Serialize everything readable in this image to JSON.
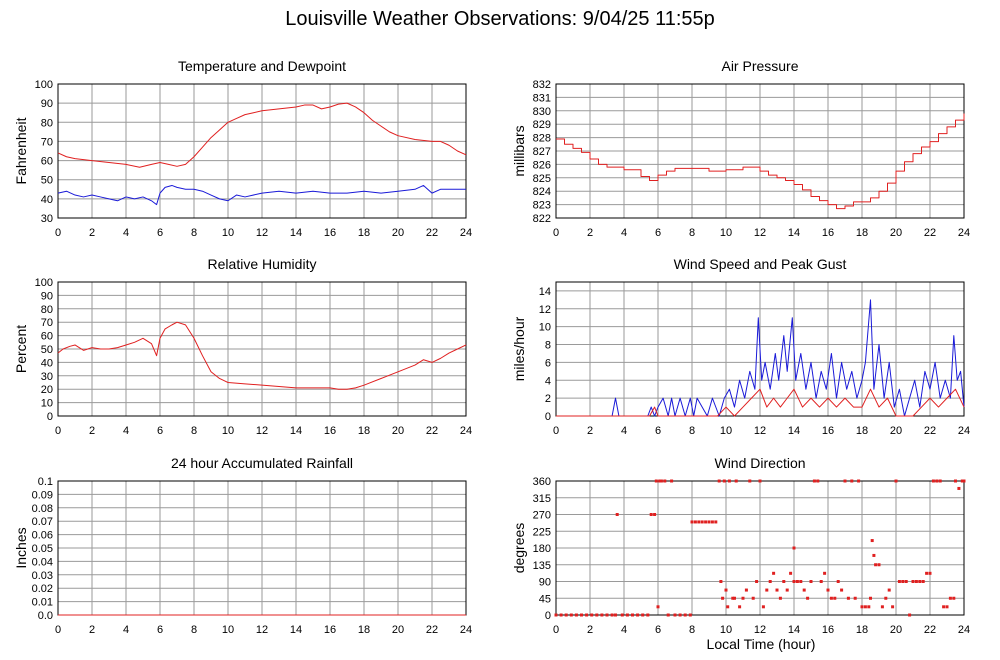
{
  "page": {
    "title": "Louisville Weather Observations: 9/04/25 11:55p"
  },
  "xlabel": "Local Time (hour)",
  "colors": {
    "red": "#e02020",
    "blue": "#1a1ad8",
    "grid": "#9a9a9a",
    "axis": "#000000"
  },
  "chart_data": [
    {
      "id": "temp",
      "type": "line",
      "title": "Temperature and Dewpoint",
      "ylabel": "Fahrenheit",
      "xlim": [
        0,
        24
      ],
      "ylim": [
        30,
        100
      ],
      "xticks": [
        0,
        2,
        4,
        6,
        8,
        10,
        12,
        14,
        16,
        18,
        20,
        22,
        24
      ],
      "yticks": [
        30,
        40,
        50,
        60,
        70,
        80,
        90,
        100
      ],
      "series": [
        {
          "color": "red",
          "x": [
            0,
            0.5,
            1,
            2,
            3,
            4,
            4.8,
            5.5,
            6,
            6.5,
            7,
            7.5,
            8,
            8.5,
            9,
            9.5,
            10,
            10.5,
            11,
            11.5,
            12,
            13,
            14,
            14.5,
            15,
            15.5,
            16,
            16.5,
            17,
            17.5,
            18,
            18.5,
            19,
            19.5,
            20,
            21,
            22,
            22.5,
            23,
            23.5,
            24
          ],
          "y": [
            64,
            62,
            61,
            60,
            59,
            58,
            56.5,
            58,
            59,
            58,
            57,
            58,
            62,
            67,
            72,
            76,
            80,
            82,
            84,
            85,
            86,
            87,
            88,
            89,
            89,
            87,
            88,
            89.5,
            90,
            88,
            85,
            81,
            78,
            75,
            73,
            71,
            70,
            70,
            68,
            65,
            63
          ]
        },
        {
          "color": "blue",
          "x": [
            0,
            0.5,
            1,
            1.5,
            2,
            2.5,
            3,
            3.5,
            4,
            4.5,
            5,
            5.5,
            5.8,
            6,
            6.3,
            6.7,
            7,
            7.5,
            8,
            8.5,
            9,
            9.5,
            10,
            10.5,
            11,
            12,
            13,
            14,
            15,
            16,
            17,
            18,
            19,
            20,
            21,
            21.5,
            22,
            22.5,
            23,
            24
          ],
          "y": [
            43,
            44,
            42,
            41,
            42,
            41,
            40,
            39,
            41,
            40,
            41,
            39,
            37,
            43,
            46,
            47,
            46,
            45,
            45,
            44,
            42,
            40,
            39,
            42,
            41,
            43,
            44,
            43,
            44,
            43,
            43,
            44,
            43,
            44,
            45,
            47,
            43,
            45,
            45,
            45
          ]
        }
      ]
    },
    {
      "id": "pres",
      "type": "line",
      "title": "Air Pressure",
      "ylabel": "millibars",
      "xlim": [
        0,
        24
      ],
      "ylim": [
        822,
        832
      ],
      "xticks": [
        0,
        2,
        4,
        6,
        8,
        10,
        12,
        14,
        16,
        18,
        20,
        22,
        24
      ],
      "yticks": [
        822,
        823,
        824,
        825,
        826,
        827,
        828,
        829,
        830,
        831,
        832
      ],
      "series": [
        {
          "color": "red",
          "step": true,
          "x": [
            0,
            0.5,
            1,
            1.5,
            2,
            2.5,
            3,
            4,
            5,
            5.5,
            6,
            6.5,
            7,
            8,
            9,
            10,
            11,
            11.5,
            12,
            12.5,
            13,
            13.5,
            14,
            14.5,
            15,
            15.5,
            16,
            16.5,
            17,
            17.5,
            18,
            18.5,
            19,
            19.5,
            20,
            20.5,
            21,
            21.5,
            22,
            22.5,
            23,
            23.5,
            24
          ],
          "y": [
            827.9,
            827.5,
            827.2,
            826.9,
            826.4,
            826.0,
            825.8,
            825.6,
            825.1,
            824.8,
            825.2,
            825.5,
            825.7,
            825.7,
            825.5,
            825.6,
            825.8,
            825.8,
            825.5,
            825.2,
            825.0,
            824.8,
            824.5,
            824.1,
            823.6,
            823.3,
            823.0,
            822.7,
            822.9,
            823.2,
            823.2,
            823.5,
            824.0,
            824.6,
            825.5,
            826.2,
            826.8,
            827.3,
            827.7,
            828.3,
            828.8,
            829.3,
            829.8
          ]
        }
      ]
    },
    {
      "id": "rh",
      "type": "line",
      "title": "Relative Humidity",
      "ylabel": "Percent",
      "xlim": [
        0,
        24
      ],
      "ylim": [
        0,
        100
      ],
      "xticks": [
        0,
        2,
        4,
        6,
        8,
        10,
        12,
        14,
        16,
        18,
        20,
        22,
        24
      ],
      "yticks": [
        0,
        10,
        20,
        30,
        40,
        50,
        60,
        70,
        80,
        90,
        100
      ],
      "series": [
        {
          "color": "red",
          "x": [
            0,
            0.3,
            0.7,
            1,
            1.5,
            2,
            2.5,
            3,
            3.5,
            4,
            4.5,
            5,
            5.5,
            5.8,
            6,
            6.3,
            6.7,
            7,
            7.5,
            8,
            8.5,
            9,
            9.5,
            10,
            11,
            12,
            13,
            14,
            15,
            16,
            16.5,
            17,
            17.5,
            18,
            19,
            20,
            21,
            21.5,
            22,
            22.5,
            23,
            23.5,
            24
          ],
          "y": [
            47,
            50,
            52,
            53,
            49,
            51,
            50,
            50,
            51,
            53,
            55,
            58,
            54,
            45,
            58,
            65,
            68,
            70,
            68,
            58,
            45,
            33,
            28,
            25,
            24,
            23,
            22,
            21,
            21,
            21,
            20,
            20,
            21,
            23,
            28,
            33,
            38,
            42,
            40,
            43,
            47,
            50,
            53
          ]
        }
      ]
    },
    {
      "id": "wind",
      "type": "line",
      "title": "Wind Speed and Peak Gust",
      "ylabel": "miles/hour",
      "xlim": [
        0,
        24
      ],
      "ylim": [
        0,
        15
      ],
      "xticks": [
        0,
        2,
        4,
        6,
        8,
        10,
        12,
        14,
        16,
        18,
        20,
        22,
        24
      ],
      "yticks": [
        0,
        2,
        4,
        6,
        8,
        10,
        12,
        14
      ],
      "series": [
        {
          "color": "blue",
          "x": [
            0,
            3.3,
            3.5,
            3.7,
            5.4,
            5.6,
            5.8,
            6.0,
            6.3,
            6.6,
            6.8,
            7.0,
            7.3,
            7.6,
            7.9,
            8.1,
            8.3,
            8.6,
            8.9,
            9.2,
            9.6,
            9.9,
            10.2,
            10.5,
            10.8,
            11.1,
            11.4,
            11.7,
            11.9,
            12.1,
            12.3,
            12.6,
            12.9,
            13.1,
            13.4,
            13.6,
            13.9,
            14.1,
            14.4,
            14.7,
            15.0,
            15.3,
            15.6,
            15.9,
            16.2,
            16.5,
            16.8,
            17.1,
            17.4,
            17.7,
            18.0,
            18.2,
            18.5,
            18.7,
            19.0,
            19.3,
            19.6,
            19.9,
            20.2,
            20.5,
            20.8,
            21.1,
            21.4,
            21.7,
            22.0,
            22.3,
            22.6,
            22.9,
            23.2,
            23.4,
            23.6,
            23.8,
            24
          ],
          "y": [
            0,
            0,
            2,
            0,
            0,
            1,
            0,
            1,
            2,
            0,
            2,
            0,
            2,
            0,
            2,
            0,
            2,
            1,
            0,
            2,
            0,
            2,
            3,
            1,
            4,
            2,
            5,
            3,
            11,
            4,
            6,
            3,
            7,
            4,
            9,
            5,
            11,
            4,
            7,
            3,
            6,
            2,
            5,
            3,
            7,
            2,
            6,
            3,
            5,
            2,
            4,
            6,
            13,
            3,
            8,
            2,
            6,
            1,
            3,
            0,
            2,
            4,
            1,
            5,
            3,
            6,
            2,
            4,
            2,
            9,
            4,
            5,
            1
          ]
        },
        {
          "color": "red",
          "x": [
            0,
            5.5,
            5.8,
            6.0,
            6.5,
            9.5,
            10.0,
            10.5,
            11.0,
            11.5,
            12.0,
            12.4,
            12.8,
            13.2,
            13.6,
            14.0,
            14.5,
            15.0,
            15.5,
            16.0,
            16.5,
            17.0,
            17.5,
            18.0,
            18.5,
            19.0,
            19.5,
            20.0,
            21.0,
            21.5,
            22.0,
            22.5,
            23.0,
            23.5,
            24
          ],
          "y": [
            0,
            0,
            1,
            0,
            0,
            0,
            1,
            0,
            1,
            2,
            3,
            1,
            2,
            1,
            2,
            3,
            1,
            2,
            1,
            2,
            1,
            2,
            1,
            1,
            3,
            1,
            2,
            0,
            0,
            1,
            2,
            1,
            2,
            3,
            1
          ]
        }
      ]
    },
    {
      "id": "rain",
      "type": "line",
      "title": "24 hour Accumulated Rainfall",
      "ylabel": "Inches",
      "xlim": [
        0,
        24
      ],
      "ylim": [
        0,
        0.1
      ],
      "xticks": [
        0,
        2,
        4,
        6,
        8,
        10,
        12,
        14,
        16,
        18,
        20,
        22,
        24
      ],
      "yticks": [
        0.0,
        0.01,
        0.02,
        0.03,
        0.04,
        0.05,
        0.06,
        0.07,
        0.08,
        0.09,
        0.1
      ],
      "ytick_labels": [
        "0.0",
        "0.01",
        "0.02",
        "0.03",
        "0.04",
        "0.05",
        "0.06",
        "0.07",
        "0.08",
        "0.09",
        "0.1"
      ],
      "series": [
        {
          "color": "red",
          "x": [
            0,
            24
          ],
          "y": [
            0,
            0
          ]
        }
      ]
    },
    {
      "id": "dir",
      "type": "scatter",
      "title": "Wind Direction",
      "ylabel": "degrees",
      "xlim": [
        0,
        24
      ],
      "ylim": [
        0,
        360
      ],
      "xticks": [
        0,
        2,
        4,
        6,
        8,
        10,
        12,
        14,
        16,
        18,
        20,
        22,
        24
      ],
      "yticks": [
        0,
        45,
        90,
        135,
        180,
        225,
        270,
        315,
        360
      ],
      "series": [
        {
          "color": "red",
          "x": [
            0,
            0.3,
            0.6,
            0.9,
            1.2,
            1.5,
            1.8,
            2.1,
            2.4,
            2.7,
            3.0,
            3.3,
            3.5,
            3.6,
            3.9,
            4.2,
            4.5,
            4.8,
            5.1,
            5.4,
            5.6,
            5.8,
            5.9,
            6.0,
            6.1,
            6.2,
            6.4,
            6.6,
            6.8,
            7.0,
            7.3,
            7.6,
            7.9,
            8.0,
            8.2,
            8.4,
            8.6,
            8.8,
            9.0,
            9.2,
            9.4,
            9.6,
            9.7,
            9.8,
            9.9,
            10.0,
            10.1,
            10.2,
            10.4,
            10.5,
            10.6,
            10.8,
            11.0,
            11.2,
            11.4,
            11.6,
            11.8,
            12.0,
            12.2,
            12.4,
            12.6,
            12.8,
            13.0,
            13.2,
            13.4,
            13.6,
            13.8,
            14.0,
            14.0,
            14.2,
            14.4,
            14.6,
            14.8,
            15.0,
            15.2,
            15.4,
            15.6,
            15.8,
            16.0,
            16.2,
            16.4,
            16.6,
            16.8,
            17.0,
            17.2,
            17.4,
            17.6,
            17.8,
            18.0,
            18.2,
            18.4,
            18.5,
            18.6,
            18.7,
            18.8,
            19.0,
            19.2,
            19.4,
            19.6,
            19.8,
            20.0,
            20.2,
            20.4,
            20.6,
            20.8,
            21.0,
            21.2,
            21.4,
            21.6,
            21.8,
            22.0,
            22.2,
            22.4,
            22.6,
            22.8,
            23.0,
            23.2,
            23.4,
            23.5,
            23.7,
            23.9,
            24.0
          ],
          "y": [
            0,
            0,
            0,
            0,
            0,
            0,
            0,
            0,
            0,
            0,
            0,
            0,
            0,
            270,
            0,
            0,
            0,
            0,
            0,
            0,
            270,
            270,
            360,
            22,
            360,
            360,
            360,
            0,
            360,
            0,
            0,
            0,
            0,
            250,
            250,
            250,
            250,
            250,
            250,
            250,
            250,
            360,
            90,
            45,
            360,
            67,
            22,
            360,
            45,
            45,
            360,
            22,
            45,
            67,
            360,
            45,
            90,
            360,
            22,
            67,
            90,
            112,
            67,
            45,
            90,
            67,
            112,
            90,
            180,
            90,
            90,
            67,
            45,
            90,
            360,
            360,
            90,
            112,
            67,
            45,
            45,
            90,
            67,
            360,
            45,
            360,
            45,
            360,
            22,
            22,
            22,
            45,
            200,
            160,
            135,
            135,
            22,
            45,
            67,
            22,
            360,
            90,
            90,
            90,
            0,
            90,
            90,
            90,
            90,
            112,
            112,
            360,
            360,
            360,
            22,
            22,
            45,
            45,
            360,
            340,
            360,
            360
          ]
        }
      ]
    }
  ]
}
